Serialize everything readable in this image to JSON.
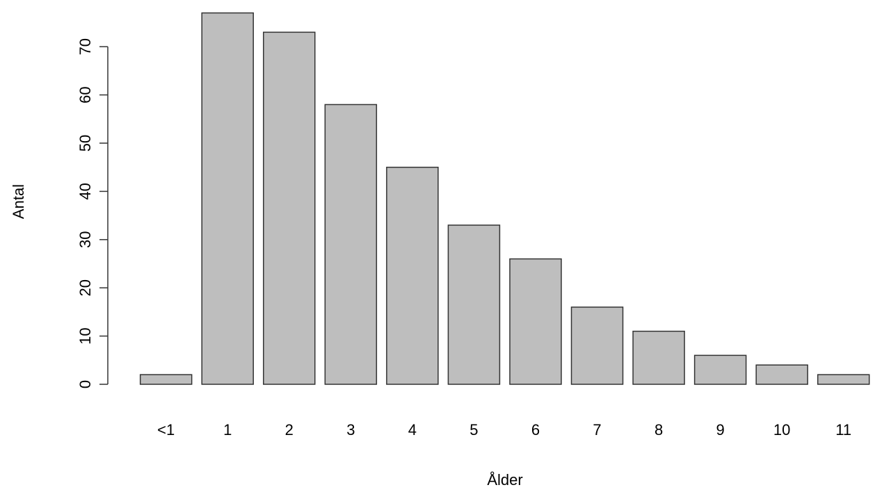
{
  "chart_data": {
    "type": "bar",
    "x_label": "Ålder",
    "y_label": "Antal",
    "categories": [
      "<1",
      "1",
      "2",
      "3",
      "4",
      "5",
      "6",
      "7",
      "8",
      "9",
      "10",
      "11"
    ],
    "values": [
      2,
      77,
      73,
      58,
      45,
      33,
      26,
      16,
      11,
      6,
      4,
      2
    ],
    "color": "#bebebe",
    "ylim": [
      0,
      77
    ],
    "yticks": [
      0,
      10,
      20,
      30,
      40,
      50,
      60,
      70
    ]
  }
}
